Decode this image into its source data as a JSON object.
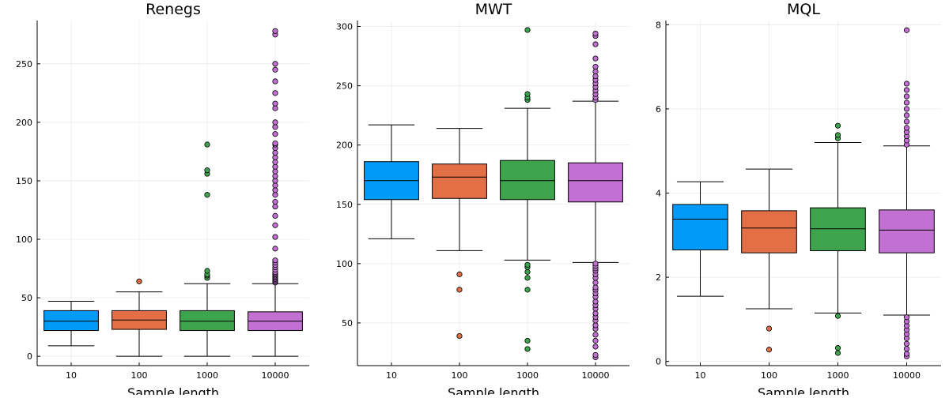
{
  "chart_data": [
    {
      "type": "box",
      "title": "Renegs",
      "xlabel": "Sample length",
      "categories": [
        "10",
        "100",
        "1000",
        "10000"
      ],
      "ylim": [
        -8,
        287
      ],
      "yticks": [
        0,
        50,
        100,
        150,
        200,
        250
      ],
      "grid": true,
      "boxes": [
        {
          "category": "10",
          "whisker_low": 9,
          "q1": 22,
          "median": 30,
          "q3": 39,
          "whisker_high": 47,
          "outliers": []
        },
        {
          "category": "100",
          "whisker_low": 0,
          "q1": 23,
          "median": 31,
          "q3": 39,
          "whisker_high": 55,
          "outliers": [
            64
          ]
        },
        {
          "category": "1000",
          "whisker_low": 0,
          "q1": 22,
          "median": 30,
          "q3": 39,
          "whisker_high": 62,
          "outliers": [
            67,
            69,
            70,
            73,
            138,
            156,
            159,
            181
          ]
        },
        {
          "category": "10000",
          "whisker_low": 0,
          "q1": 22,
          "median": 30,
          "q3": 38,
          "whisker_high": 62,
          "outliers": [
            63,
            64,
            65,
            66,
            67,
            68,
            69,
            70,
            71,
            72,
            74,
            76,
            78,
            80,
            82,
            92,
            102,
            112,
            120,
            128,
            132,
            138,
            142,
            146,
            150,
            154,
            158,
            162,
            166,
            170,
            174,
            178,
            181,
            182,
            190,
            196,
            200,
            212,
            216,
            225,
            235,
            245,
            250,
            275,
            278
          ]
        }
      ]
    },
    {
      "type": "box",
      "title": "MWT",
      "xlabel": "Sample length",
      "categories": [
        "10",
        "100",
        "1000",
        "10000"
      ],
      "ylim": [
        14,
        305
      ],
      "yticks": [
        50,
        100,
        150,
        200,
        250,
        300
      ],
      "grid": true,
      "boxes": [
        {
          "category": "10",
          "whisker_low": 121,
          "q1": 154,
          "median": 170,
          "q3": 186,
          "whisker_high": 217,
          "outliers": []
        },
        {
          "category": "100",
          "whisker_low": 111,
          "q1": 155,
          "median": 173,
          "q3": 184,
          "whisker_high": 214,
          "outliers": [
            39,
            78,
            91
          ]
        },
        {
          "category": "1000",
          "whisker_low": 103,
          "q1": 154,
          "median": 170,
          "q3": 187,
          "whisker_high": 231,
          "outliers": [
            28,
            35,
            78,
            88,
            93,
            97,
            99,
            238,
            240,
            243,
            297
          ]
        },
        {
          "category": "10000",
          "whisker_low": 101,
          "q1": 152,
          "median": 170,
          "q3": 185,
          "whisker_high": 237,
          "outliers": [
            21,
            23,
            30,
            35,
            40,
            45,
            48,
            52,
            55,
            58,
            62,
            65,
            68,
            72,
            75,
            78,
            80,
            84,
            88,
            91,
            94,
            96,
            98,
            100,
            238,
            240,
            243,
            246,
            249,
            252,
            255,
            258,
            262,
            266,
            273,
            285,
            292,
            294
          ]
        }
      ]
    },
    {
      "type": "box",
      "title": "MQL",
      "xlabel": "Sample length",
      "categories": [
        "10",
        "100",
        "1000",
        "10000"
      ],
      "ylim": [
        -0.1,
        8.1
      ],
      "yticks": [
        0,
        2,
        4,
        6,
        8
      ],
      "grid": true,
      "boxes": [
        {
          "category": "10",
          "whisker_low": 1.55,
          "q1": 2.65,
          "median": 3.38,
          "q3": 3.73,
          "whisker_high": 4.27,
          "outliers": []
        },
        {
          "category": "100",
          "whisker_low": 1.25,
          "q1": 2.58,
          "median": 3.17,
          "q3": 3.58,
          "whisker_high": 4.57,
          "outliers": [
            0.28,
            0.78
          ]
        },
        {
          "category": "1000",
          "whisker_low": 1.15,
          "q1": 2.63,
          "median": 3.15,
          "q3": 3.65,
          "whisker_high": 5.2,
          "outliers": [
            0.2,
            0.32,
            1.08,
            5.3,
            5.38,
            5.6
          ]
        },
        {
          "category": "10000",
          "whisker_low": 1.1,
          "q1": 2.58,
          "median": 3.12,
          "q3": 3.6,
          "whisker_high": 5.12,
          "outliers": [
            0.12,
            0.18,
            0.3,
            0.42,
            0.55,
            0.65,
            0.75,
            0.85,
            0.95,
            1.05,
            5.15,
            5.25,
            5.35,
            5.45,
            5.55,
            5.7,
            5.85,
            6.0,
            6.15,
            6.3,
            6.45,
            6.6,
            7.87
          ]
        }
      ]
    }
  ],
  "colors": [
    "#009af9",
    "#e26f46",
    "#3da44d",
    "#c271d2"
  ]
}
